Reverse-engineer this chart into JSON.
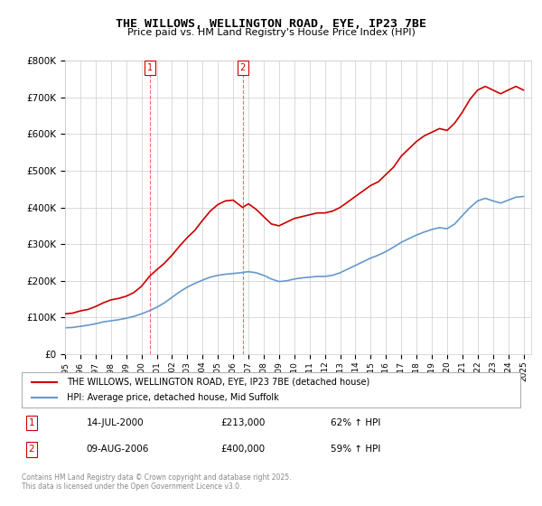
{
  "title": "THE WILLOWS, WELLINGTON ROAD, EYE, IP23 7BE",
  "subtitle": "Price paid vs. HM Land Registry's House Price Index (HPI)",
  "ylabel": "",
  "background_color": "#ffffff",
  "grid_color": "#cccccc",
  "property_color": "#cc0000",
  "hpi_color": "#6699cc",
  "annotation1": {
    "label": "1",
    "date_str": "14-JUL-2000",
    "price": 213000,
    "hpi_pct": "62% ↑ HPI",
    "x_year": 2000.54
  },
  "annotation2": {
    "label": "2",
    "date_str": "09-AUG-2006",
    "price": 400000,
    "hpi_pct": "59% ↑ HPI",
    "x_year": 2006.62
  },
  "legend_property": "THE WILLOWS, WELLINGTON ROAD, EYE, IP23 7BE (detached house)",
  "legend_hpi": "HPI: Average price, detached house, Mid Suffolk",
  "footer": "Contains HM Land Registry data © Crown copyright and database right 2025.\nThis data is licensed under the Open Government Licence v3.0.",
  "ylim": [
    0,
    800000
  ],
  "yticks": [
    0,
    100000,
    200000,
    300000,
    400000,
    500000,
    600000,
    700000,
    800000
  ],
  "xlim_start": 1995.0,
  "xlim_end": 2025.5,
  "property_x": [
    1995.0,
    1995.5,
    1996.0,
    1996.5,
    1997.0,
    1997.5,
    1998.0,
    1998.5,
    1999.0,
    1999.5,
    2000.0,
    2000.54,
    2001.0,
    2001.5,
    2002.0,
    2002.5,
    2003.0,
    2003.5,
    2004.0,
    2004.5,
    2005.0,
    2005.5,
    2006.0,
    2006.62,
    2007.0,
    2007.5,
    2008.0,
    2008.5,
    2009.0,
    2009.5,
    2010.0,
    2010.5,
    2011.0,
    2011.5,
    2012.0,
    2012.5,
    2013.0,
    2013.5,
    2014.0,
    2014.5,
    2015.0,
    2015.5,
    2016.0,
    2016.5,
    2017.0,
    2017.5,
    2018.0,
    2018.5,
    2019.0,
    2019.5,
    2020.0,
    2020.5,
    2021.0,
    2021.5,
    2022.0,
    2022.5,
    2023.0,
    2023.5,
    2024.0,
    2024.5,
    2025.0
  ],
  "property_y": [
    110000,
    112000,
    118000,
    122000,
    130000,
    140000,
    148000,
    152000,
    158000,
    168000,
    185000,
    213000,
    230000,
    248000,
    270000,
    295000,
    318000,
    338000,
    365000,
    390000,
    408000,
    418000,
    420000,
    400000,
    410000,
    395000,
    375000,
    355000,
    350000,
    360000,
    370000,
    375000,
    380000,
    385000,
    385000,
    390000,
    400000,
    415000,
    430000,
    445000,
    460000,
    470000,
    490000,
    510000,
    540000,
    560000,
    580000,
    595000,
    605000,
    615000,
    610000,
    630000,
    660000,
    695000,
    720000,
    730000,
    720000,
    710000,
    720000,
    730000,
    720000
  ],
  "hpi_x": [
    1995.0,
    1995.5,
    1996.0,
    1996.5,
    1997.0,
    1997.5,
    1998.0,
    1998.5,
    1999.0,
    1999.5,
    2000.0,
    2000.5,
    2001.0,
    2001.5,
    2002.0,
    2002.5,
    2003.0,
    2003.5,
    2004.0,
    2004.5,
    2005.0,
    2005.5,
    2006.0,
    2006.5,
    2007.0,
    2007.5,
    2008.0,
    2008.5,
    2009.0,
    2009.5,
    2010.0,
    2010.5,
    2011.0,
    2011.5,
    2012.0,
    2012.5,
    2013.0,
    2013.5,
    2014.0,
    2014.5,
    2015.0,
    2015.5,
    2016.0,
    2016.5,
    2017.0,
    2017.5,
    2018.0,
    2018.5,
    2019.0,
    2019.5,
    2020.0,
    2020.5,
    2021.0,
    2021.5,
    2022.0,
    2022.5,
    2023.0,
    2023.5,
    2024.0,
    2024.5,
    2025.0
  ],
  "hpi_y": [
    72000,
    73000,
    76000,
    79000,
    83000,
    88000,
    91000,
    94000,
    98000,
    103000,
    110000,
    118000,
    128000,
    140000,
    155000,
    170000,
    183000,
    193000,
    202000,
    210000,
    215000,
    218000,
    220000,
    222000,
    225000,
    222000,
    215000,
    205000,
    198000,
    200000,
    205000,
    208000,
    210000,
    212000,
    212000,
    215000,
    222000,
    232000,
    242000,
    252000,
    262000,
    270000,
    280000,
    292000,
    305000,
    315000,
    325000,
    333000,
    340000,
    345000,
    342000,
    355000,
    378000,
    400000,
    418000,
    425000,
    418000,
    412000,
    420000,
    428000,
    430000
  ]
}
